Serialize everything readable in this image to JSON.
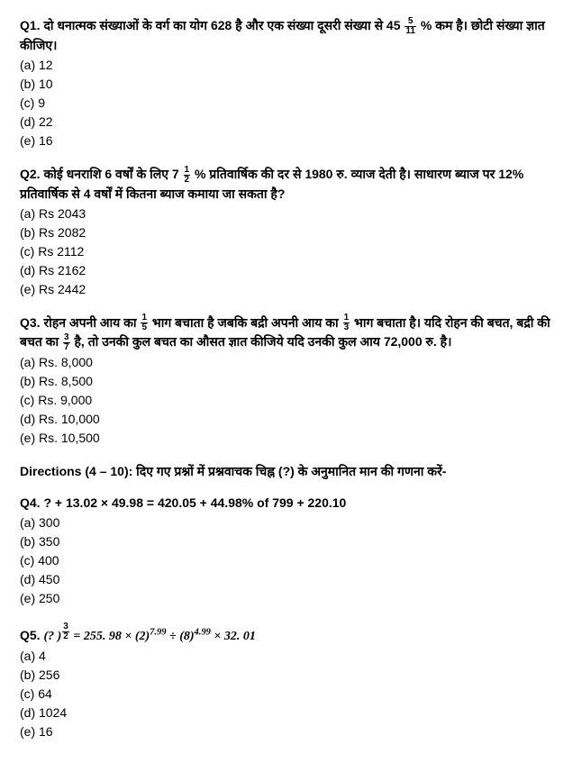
{
  "q1": {
    "num": "Q1.",
    "text_a": "दो धनात्मक संख्याओं के वर्ग का योग 628 है और एक संख्या दूसरी संख्या से 45",
    "frac_num": "5",
    "frac_den": "11",
    "text_b": "% कम है। छोटी संख्या ज्ञात कीजिए।",
    "options": [
      "(a) 12",
      "(b) 10",
      "(c) 9",
      "(d) 22",
      "(e) 16"
    ]
  },
  "q2": {
    "num": "Q2.",
    "text_a": "कोई धनराशि 6 वर्षों के लिए 7",
    "frac_num": "1",
    "frac_den": "2",
    "text_b": "%  प्रतिवार्षिक की दर से 1980 रु. व्याज देती है। साधारण ब्याज पर 12% प्रतिवार्षिक से 4 वर्षों में कितना ब्याज कमाया जा सकता है?",
    "options": [
      "(a) Rs 2043",
      "(b) Rs 2082",
      "(c) Rs 2112",
      "(d) Rs 2162",
      "(e) Rs 2442"
    ]
  },
  "q3": {
    "num": "Q3.",
    "text_a": "रोहन अपनी आय का",
    "frac1_num": "1",
    "frac1_den": "5",
    "text_b": "भाग बचाता है जबकि बद्री अपनी आय का",
    "frac2_num": "1",
    "frac2_den": "3",
    "text_c": "भाग बचाता है। यदि रोहन की बचत, बद्री की बचत का",
    "frac3_num": "3",
    "frac3_den": "7",
    "text_d": "है, तो उनकी कुल बचत का औसत ज्ञात कीजिये यदि उनकी कुल आय 72,000 रु. है।",
    "options": [
      "(a) Rs. 8,000",
      "(b) Rs. 8,500",
      "(c) Rs. 9,000",
      "(d) Rs. 10,000",
      "(e) Rs. 10,500"
    ]
  },
  "directions": {
    "text": "Directions (4 – 10): दिए  गए  प्रश्नों  में प्रश्नवाचक चिह्न  (?) के  अनुमानित  मान  की  गणना  करें-"
  },
  "q4": {
    "num": "Q4.",
    "expr": "? + 13.02 × 49.98 = 420.05 + 44.98% of 799 + 220.10",
    "options": [
      "(a) 300",
      "(b) 350",
      "(c) 400",
      "(d) 450",
      "(e) 250"
    ]
  },
  "q5": {
    "num": "Q5.",
    "expr_a": "(? )",
    "exp_frac_num": "3",
    "exp_frac_den": "2",
    "expr_b": " = 255. 98 × (2)",
    "sup1": "7.99",
    "expr_c": " ÷ (8)",
    "sup2": "4.99",
    "expr_d": " × 32. 01",
    "options": [
      "(a) 4",
      "(b) 256",
      "(c) 64",
      "(d) 1024",
      "(e) 16"
    ]
  }
}
